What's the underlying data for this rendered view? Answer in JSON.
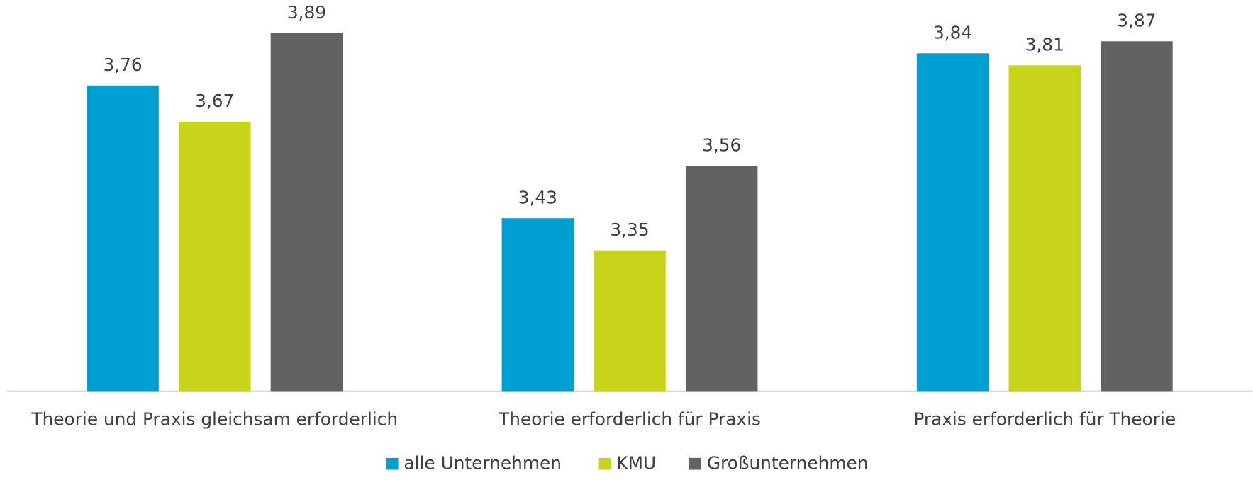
{
  "chart_data": {
    "type": "bar",
    "categories": [
      "Theorie und Praxis gleichsam erforderlich",
      "Theorie erforderlich für Praxis",
      "Praxis erforderlich für Theorie"
    ],
    "series": [
      {
        "name": "alle Unternehmen",
        "color": "#009fd1",
        "values": [
          3.76,
          3.43,
          3.84
        ],
        "value_labels": [
          "3,76",
          "3,43",
          "3,84"
        ]
      },
      {
        "name": "KMU",
        "color": "#c8d41a",
        "values": [
          3.67,
          3.35,
          3.81
        ],
        "value_labels": [
          "3,67",
          "3,35",
          "3,81"
        ]
      },
      {
        "name": "Großunternehmen",
        "color": "#626262",
        "values": [
          3.89,
          3.56,
          3.87
        ],
        "value_labels": [
          "3,89",
          "3,56",
          "3,87"
        ]
      }
    ],
    "ylim": [
      3,
      4
    ],
    "legend": "bottom"
  }
}
